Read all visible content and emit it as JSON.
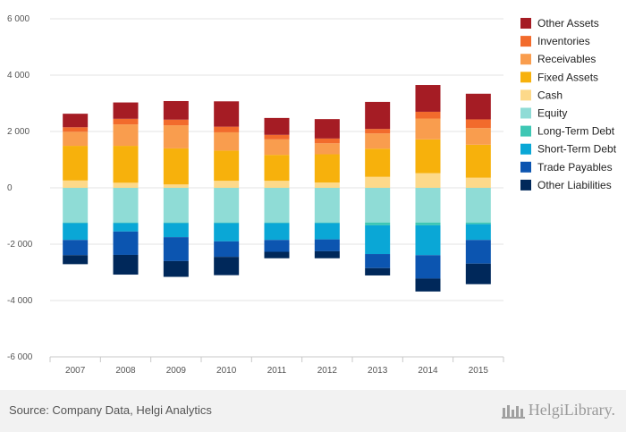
{
  "chart_data": {
    "type": "bar",
    "stacked": true,
    "categories": [
      "2007",
      "2008",
      "2009",
      "2010",
      "2011",
      "2012",
      "2013",
      "2014",
      "2015"
    ],
    "ylim": [
      -6000,
      6000
    ],
    "yticks": [
      6000,
      4000,
      2000,
      0,
      -2000,
      -4000,
      -6000
    ],
    "ytick_labels": [
      "6 000",
      "4 000",
      "2 000",
      "0",
      "-2 000",
      "-4 000",
      "-6 000"
    ],
    "grid": true,
    "legend_position": "right",
    "series": [
      {
        "name": "Other Assets",
        "side": "assets",
        "color": "#a51c24",
        "values": [
          480,
          580,
          660,
          900,
          600,
          690,
          960,
          950,
          910
        ]
      },
      {
        "name": "Inventories",
        "side": "assets",
        "color": "#f26b2c",
        "values": [
          160,
          200,
          200,
          200,
          160,
          170,
          160,
          240,
          310
        ]
      },
      {
        "name": "Receivables",
        "side": "assets",
        "color": "#f99d4e",
        "values": [
          500,
          760,
          820,
          650,
          550,
          390,
          540,
          740,
          590
        ]
      },
      {
        "name": "Fixed Assets",
        "side": "assets",
        "color": "#f7b10c",
        "values": [
          1230,
          1310,
          1280,
          1070,
          920,
          1000,
          1000,
          1200,
          1170
        ]
      },
      {
        "name": "Cash",
        "side": "assets",
        "color": "#fdd98a",
        "values": [
          260,
          180,
          120,
          250,
          250,
          190,
          390,
          520,
          360
        ]
      },
      {
        "name": "Equity",
        "side": "liabilities",
        "color": "#8fdcd6",
        "values": [
          -1230,
          -1230,
          -1230,
          -1230,
          -1230,
          -1230,
          -1230,
          -1230,
          -1230
        ]
      },
      {
        "name": "Long-Term Debt",
        "side": "liabilities",
        "color": "#3ec7b4",
        "values": [
          -20,
          -20,
          -20,
          -20,
          -20,
          -20,
          -100,
          -100,
          -60
        ]
      },
      {
        "name": "Short-Term Debt",
        "side": "liabilities",
        "color": "#0aa7d6",
        "values": [
          -600,
          -300,
          -500,
          -650,
          -600,
          -580,
          -1020,
          -1060,
          -560
        ]
      },
      {
        "name": "Trade Payables",
        "side": "liabilities",
        "color": "#0c55b0",
        "values": [
          -540,
          -830,
          -850,
          -550,
          -420,
          -420,
          -500,
          -830,
          -840
        ]
      },
      {
        "name": "Other Liabilities",
        "side": "liabilities",
        "color": "#00285a",
        "values": [
          -320,
          -700,
          -560,
          -650,
          -230,
          -250,
          -260,
          -460,
          -730
        ]
      }
    ]
  },
  "footer": {
    "source": "Source: Company Data, Helgi Analytics",
    "brand": "HelgiLibrary."
  }
}
